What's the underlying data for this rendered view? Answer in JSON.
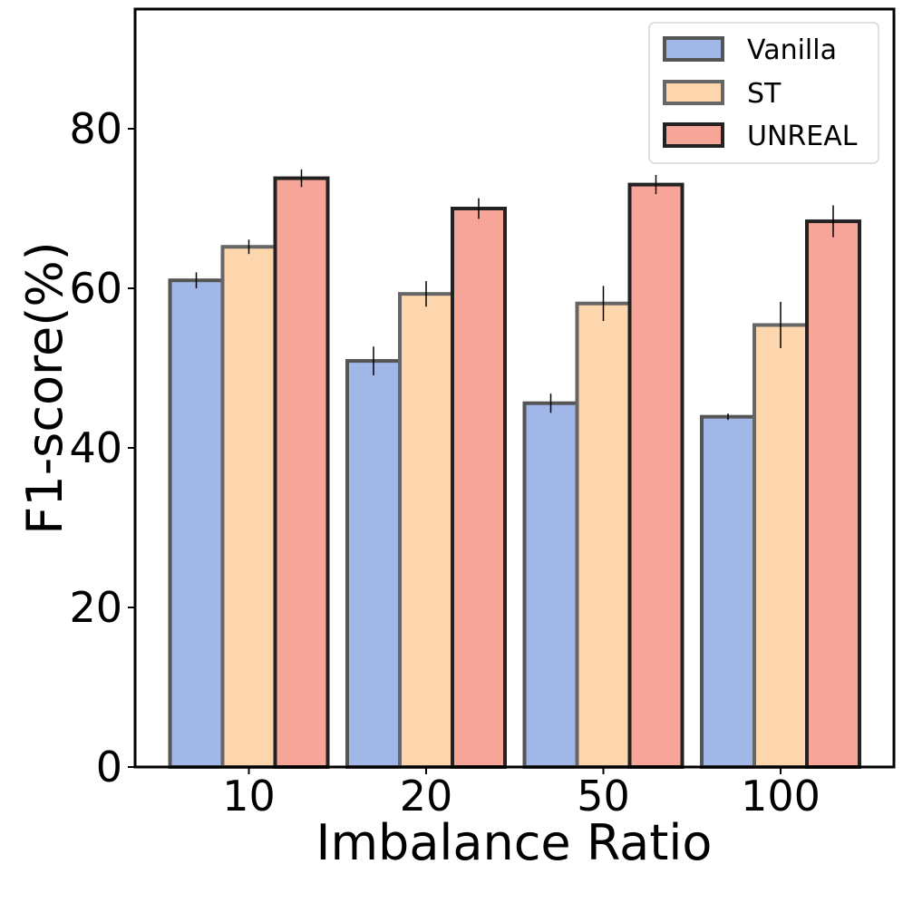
{
  "chart_data": {
    "type": "bar",
    "title": "",
    "xlabel": "Imbalance Ratio",
    "ylabel": "F1-score(%)",
    "categories": [
      "10",
      "20",
      "50",
      "100"
    ],
    "ylim": [
      0,
      95
    ],
    "yticks": [
      0,
      20,
      40,
      60,
      80
    ],
    "legend_position": "top-right",
    "grid": false,
    "series": [
      {
        "name": "Vanilla",
        "color": "#a1b7e8",
        "edge_color": "#555555",
        "values": [
          61.0,
          50.9,
          45.6,
          43.9
        ],
        "errors": [
          1.0,
          1.8,
          1.2,
          0.4
        ]
      },
      {
        "name": "ST",
        "color": "#fed6ae",
        "edge_color": "#666666",
        "values": [
          65.2,
          59.3,
          58.1,
          55.4
        ],
        "errors": [
          0.9,
          1.6,
          2.2,
          2.9
        ]
      },
      {
        "name": "UNREAL",
        "color": "#f7a599",
        "edge_color": "#222222",
        "values": [
          73.8,
          70.0,
          73.0,
          68.4
        ],
        "errors": [
          1.1,
          1.3,
          1.2,
          2.0
        ]
      }
    ]
  }
}
